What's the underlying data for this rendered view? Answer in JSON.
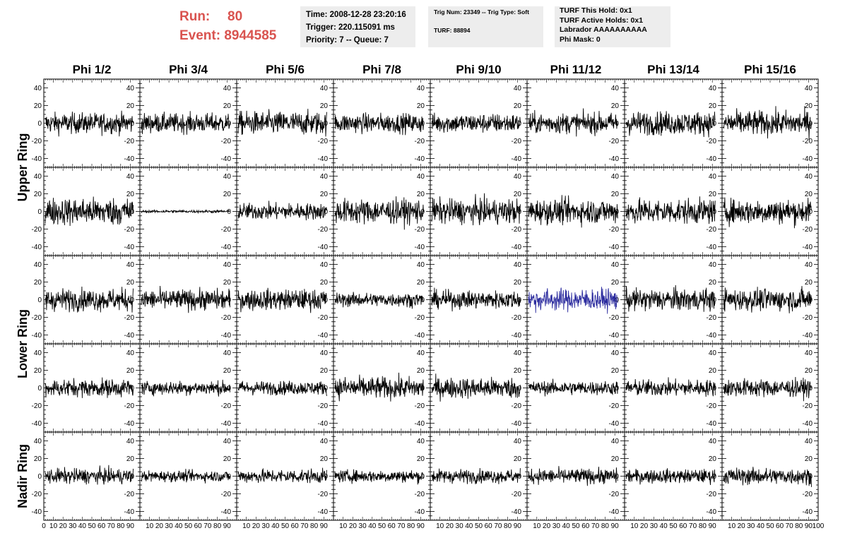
{
  "header": {
    "run_label": "Run:",
    "run_value": "80",
    "event_label": "Event:",
    "event_value": "8944585",
    "time": "Time: 2008-12-28 23:20:16",
    "trigger": "Trigger: 220.115091 ms",
    "priority": "Priority: 7 -- Queue: 7",
    "trig_num": "Trig Num: 23349 -- Trig Type: Soft",
    "turf": "TURF: 88894",
    "turf_this_hold": "TURF This Hold: 0x1",
    "turf_active_holds": "TURF Active Holds: 0x1",
    "labrador": "Labrador AAAAAAAAAA",
    "phi_mask": "Phi Mask: 0"
  },
  "columns": [
    "Phi 1/2",
    "Phi 3/4",
    "Phi 5/6",
    "Phi 7/8",
    "Phi 9/10",
    "Phi 11/12",
    "Phi 13/14",
    "Phi 15/16"
  ],
  "rows": [
    "Upper Ring",
    "Lower Ring",
    "Nadir Ring"
  ],
  "colors": {
    "trace": "#000000",
    "highlight_trace": "#2b2b9e",
    "title_red": "#d9534f",
    "info_bg": "#ededed"
  },
  "chart_data": {
    "type": "line",
    "description_rows": 5,
    "description_cols": 8,
    "x_ticks": [
      0,
      10,
      20,
      30,
      40,
      50,
      60,
      70,
      80,
      90,
      100
    ],
    "x_range": [
      0,
      100
    ],
    "y_ticks": [
      -40,
      -20,
      0,
      20,
      40
    ],
    "y_range": [
      -50,
      50
    ],
    "x_tick_row": [
      "0",
      "10203040506070809010",
      "10203040506070809010",
      "10203040506070809010",
      "10203040506070809010",
      "10203040506070809010",
      "10203040506070809010",
      "10203040506070809010",
      "10203040506070809010 0"
    ],
    "amplitudes": [
      [
        15,
        14,
        17,
        14,
        14,
        15,
        17,
        18
      ],
      [
        20,
        2,
        12,
        18,
        18,
        18,
        18,
        18
      ],
      [
        16,
        15,
        15,
        10,
        13,
        16,
        16,
        16
      ],
      [
        13,
        10,
        10,
        16,
        15,
        10,
        12,
        13
      ],
      [
        11,
        8,
        10,
        9,
        10,
        11,
        10,
        12
      ]
    ],
    "highlight_panel": {
      "row": 2,
      "col": 5
    }
  }
}
